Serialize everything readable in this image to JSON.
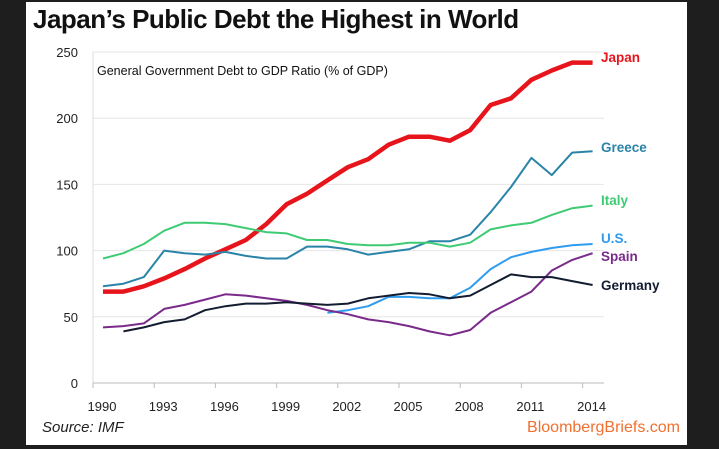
{
  "chart_data": {
    "type": "line",
    "title": "Japan’s Public Debt the Highest in World",
    "subtitle": "General Government Debt to GDP Ratio (% of GDP)",
    "xlabel": "",
    "ylabel": "",
    "ylim": [
      0,
      250
    ],
    "yticks": [
      "0",
      "50",
      "100",
      "150",
      "200",
      "250"
    ],
    "xticks": [
      "1990",
      "1993",
      "1996",
      "1999",
      "2002",
      "2005",
      "2008",
      "2011",
      "2014"
    ],
    "grid": true,
    "legend": "line-end labels",
    "x": [
      1990,
      1991,
      1992,
      1993,
      1994,
      1995,
      1996,
      1997,
      1998,
      1999,
      2000,
      2001,
      2002,
      2003,
      2004,
      2005,
      2006,
      2007,
      2008,
      2009,
      2010,
      2011,
      2012,
      2013,
      2014
    ],
    "series": [
      {
        "name": "Japan",
        "color": "#e8141c",
        "values": [
          69,
          69,
          73,
          79,
          86,
          94,
          101,
          108,
          120,
          135,
          143,
          153,
          163,
          169,
          180,
          186,
          186,
          183,
          191,
          210,
          215,
          229,
          236,
          242,
          242
        ]
      },
      {
        "name": "Greece",
        "color": "#2a84a8",
        "values": [
          73,
          75,
          80,
          100,
          98,
          97,
          99,
          96,
          94,
          94,
          103,
          103,
          101,
          97,
          99,
          101,
          107,
          107,
          112,
          129,
          148,
          170,
          157,
          174,
          175
        ]
      },
      {
        "name": "Italy",
        "color": "#3fcb74",
        "values": [
          94,
          98,
          105,
          115,
          121,
          121,
          120,
          117,
          114,
          113,
          108,
          108,
          105,
          104,
          104,
          106,
          106,
          103,
          106,
          116,
          119,
          121,
          127,
          132,
          134
        ]
      },
      {
        "name": "U.S.",
        "color": "#2f9cf0",
        "values": [
          null,
          null,
          null,
          null,
          null,
          null,
          null,
          null,
          null,
          null,
          null,
          53,
          55,
          58,
          65,
          65,
          64,
          64,
          72,
          86,
          95,
          99,
          102,
          104,
          105
        ]
      },
      {
        "name": "Spain",
        "color": "#7a2a8a",
        "values": [
          42,
          43,
          45,
          56,
          59,
          63,
          67,
          66,
          64,
          62,
          59,
          55,
          52,
          48,
          46,
          43,
          39,
          36,
          40,
          53,
          61,
          69,
          85,
          93,
          98
        ]
      },
      {
        "name": "Germany",
        "color": "#131c30",
        "values": [
          null,
          39,
          42,
          46,
          48,
          55,
          58,
          60,
          60,
          61,
          60,
          59,
          60,
          64,
          66,
          68,
          67,
          64,
          66,
          74,
          82,
          80,
          80,
          77,
          74
        ]
      }
    ],
    "source": "Source: IMF",
    "brand": "BloombergBriefs.com",
    "brand_color": "#f07030"
  }
}
